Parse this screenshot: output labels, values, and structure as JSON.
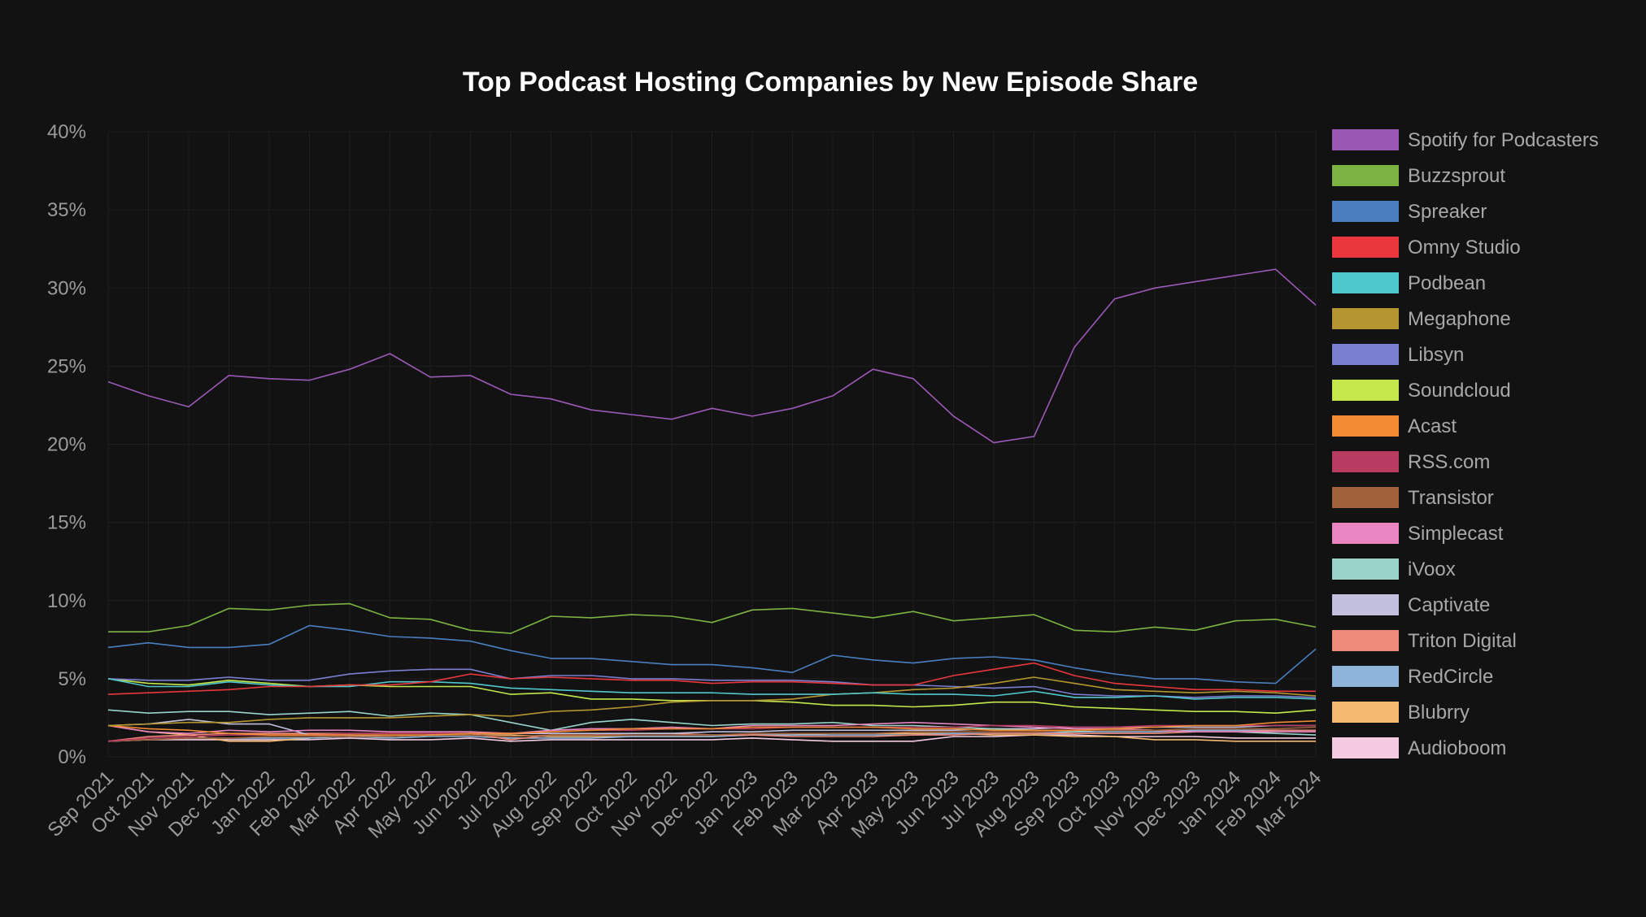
{
  "chart_data": {
    "type": "line",
    "title": "Top Podcast Hosting Companies by New Episode Share",
    "xlabel": "",
    "ylabel": "",
    "ylim": [
      0,
      40
    ],
    "yticks": [
      0,
      5,
      10,
      15,
      20,
      25,
      30,
      35,
      40
    ],
    "ytick_labels": [
      "0%",
      "5%",
      "10%",
      "15%",
      "20%",
      "25%",
      "30%",
      "35%",
      "40%"
    ],
    "grid": true,
    "legend_position": "right",
    "x": [
      "Sep 2021",
      "Oct 2021",
      "Nov 2021",
      "Dec 2021",
      "Jan 2022",
      "Feb 2022",
      "Mar 2022",
      "Apr 2022",
      "May 2022",
      "Jun 2022",
      "Jul 2022",
      "Aug 2022",
      "Sep 2022",
      "Oct 2022",
      "Nov 2022",
      "Dec 2022",
      "Jan 2023",
      "Feb 2023",
      "Mar 2023",
      "Apr 2023",
      "May 2023",
      "Jun 2023",
      "Jul 2023",
      "Aug 2023",
      "Sep 2023",
      "Oct 2023",
      "Nov 2023",
      "Dec 2023",
      "Jan 2024",
      "Feb 2024",
      "Mar 2024"
    ],
    "series": [
      {
        "name": "Spotify for Podcasters",
        "color": "#9b59b6",
        "values": [
          24.0,
          23.1,
          22.4,
          24.4,
          24.2,
          24.1,
          24.8,
          25.8,
          24.3,
          24.4,
          23.2,
          22.9,
          22.2,
          21.9,
          21.6,
          22.3,
          21.8,
          22.3,
          23.1,
          24.8,
          24.2,
          21.8,
          20.1,
          20.5,
          26.2,
          29.3,
          30.0,
          30.4,
          30.8,
          31.2,
          28.9
        ]
      },
      {
        "name": "Buzzsprout",
        "color": "#7cb342",
        "values": [
          8.0,
          8.0,
          8.4,
          9.5,
          9.4,
          9.7,
          9.8,
          8.9,
          8.8,
          8.1,
          7.9,
          9.0,
          8.9,
          9.1,
          9.0,
          8.6,
          9.4,
          9.5,
          9.2,
          8.9,
          9.3,
          8.7,
          8.9,
          9.1,
          8.1,
          8.0,
          8.3,
          8.1,
          8.7,
          8.8,
          8.3
        ]
      },
      {
        "name": "Spreaker",
        "color": "#4a7fbf",
        "values": [
          7.0,
          7.3,
          7.0,
          7.0,
          7.2,
          8.4,
          8.1,
          7.7,
          7.6,
          7.4,
          6.8,
          6.3,
          6.3,
          6.1,
          5.9,
          5.9,
          5.7,
          5.4,
          6.5,
          6.2,
          6.0,
          6.3,
          6.4,
          6.2,
          5.7,
          5.3,
          5.0,
          5.0,
          4.8,
          4.7,
          6.9
        ]
      },
      {
        "name": "Omny Studio",
        "color": "#e8383d",
        "values": [
          4.0,
          4.1,
          4.2,
          4.3,
          4.5,
          4.5,
          4.6,
          4.6,
          4.8,
          5.3,
          5.0,
          5.1,
          5.0,
          4.9,
          4.9,
          4.7,
          4.8,
          4.8,
          4.7,
          4.6,
          4.6,
          5.2,
          5.6,
          6.0,
          5.2,
          4.7,
          4.5,
          4.3,
          4.3,
          4.2,
          4.2
        ]
      },
      {
        "name": "Podbean",
        "color": "#4fc8cc",
        "values": [
          5.0,
          4.5,
          4.5,
          4.8,
          4.6,
          4.5,
          4.5,
          4.8,
          4.8,
          4.7,
          4.4,
          4.3,
          4.2,
          4.1,
          4.1,
          4.1,
          4.0,
          4.0,
          4.0,
          4.1,
          4.0,
          4.0,
          3.9,
          4.2,
          3.8,
          3.8,
          3.9,
          3.7,
          3.8,
          3.8,
          3.7
        ]
      },
      {
        "name": "Megaphone",
        "color": "#b5952f",
        "values": [
          2.0,
          2.1,
          2.2,
          2.2,
          2.4,
          2.5,
          2.5,
          2.5,
          2.6,
          2.7,
          2.6,
          2.9,
          3.0,
          3.2,
          3.5,
          3.6,
          3.6,
          3.7,
          4.0,
          4.1,
          4.3,
          4.4,
          4.7,
          5.1,
          4.7,
          4.3,
          4.2,
          4.1,
          4.2,
          4.1,
          3.9
        ]
      },
      {
        "name": "Libsyn",
        "color": "#7b7fd1",
        "values": [
          5.0,
          4.9,
          4.9,
          5.1,
          4.9,
          4.9,
          5.3,
          5.5,
          5.6,
          5.6,
          5.0,
          5.2,
          5.2,
          5.0,
          5.0,
          4.9,
          4.9,
          4.9,
          4.8,
          4.6,
          4.6,
          4.5,
          4.4,
          4.5,
          4.0,
          3.9,
          3.9,
          3.8,
          3.9,
          3.9,
          3.8
        ]
      },
      {
        "name": "Soundcloud",
        "color": "#c4e84c",
        "values": [
          5.0,
          4.7,
          4.6,
          4.9,
          4.7,
          4.5,
          4.6,
          4.5,
          4.5,
          4.5,
          4.0,
          4.1,
          3.7,
          3.7,
          3.6,
          3.6,
          3.6,
          3.5,
          3.3,
          3.3,
          3.2,
          3.3,
          3.5,
          3.5,
          3.2,
          3.1,
          3.0,
          2.9,
          2.9,
          2.8,
          3.0
        ]
      },
      {
        "name": "Acast",
        "color": "#f08a33",
        "values": [
          2.0,
          1.8,
          1.7,
          1.5,
          1.4,
          1.4,
          1.4,
          1.4,
          1.4,
          1.5,
          1.5,
          1.6,
          1.7,
          1.8,
          1.8,
          1.8,
          1.9,
          1.9,
          1.9,
          1.9,
          1.8,
          1.8,
          1.7,
          1.7,
          1.7,
          1.8,
          1.9,
          2.0,
          2.0,
          2.2,
          2.3
        ]
      },
      {
        "name": "RSS.com",
        "color": "#b83c62",
        "values": [
          1.0,
          1.2,
          1.3,
          1.4,
          1.4,
          1.4,
          1.5,
          1.5,
          1.5,
          1.5,
          1.5,
          1.6,
          1.7,
          1.7,
          1.8,
          1.8,
          1.8,
          1.9,
          1.9,
          1.9,
          1.9,
          1.9,
          2.0,
          2.0,
          1.9,
          1.9,
          2.0,
          2.0,
          2.0,
          2.0,
          2.0
        ]
      },
      {
        "name": "Transistor",
        "color": "#a0603a",
        "values": [
          1.0,
          1.1,
          1.2,
          1.2,
          1.3,
          1.3,
          1.3,
          1.3,
          1.4,
          1.4,
          1.3,
          1.4,
          1.4,
          1.4,
          1.4,
          1.4,
          1.5,
          1.5,
          1.5,
          1.5,
          1.6,
          1.6,
          1.6,
          1.6,
          1.7,
          1.7,
          1.7,
          1.8,
          1.8,
          1.8,
          1.9
        ]
      },
      {
        "name": "Simplecast",
        "color": "#e986c2",
        "values": [
          2.0,
          1.6,
          1.5,
          1.7,
          1.6,
          1.7,
          1.7,
          1.6,
          1.6,
          1.6,
          1.5,
          1.7,
          1.8,
          1.8,
          1.9,
          1.8,
          2.0,
          2.0,
          2.0,
          2.1,
          2.2,
          2.1,
          2.0,
          1.9,
          1.8,
          1.8,
          1.7,
          1.6,
          1.6,
          1.6,
          1.6
        ]
      },
      {
        "name": "iVoox",
        "color": "#98d4c8",
        "values": [
          3.0,
          2.8,
          2.9,
          2.9,
          2.7,
          2.8,
          2.9,
          2.6,
          2.8,
          2.7,
          2.2,
          1.7,
          2.2,
          2.4,
          2.2,
          2.0,
          2.1,
          2.1,
          2.2,
          2.0,
          2.0,
          1.9,
          1.8,
          1.7,
          1.6,
          1.8,
          1.7,
          1.6,
          1.6,
          1.5,
          1.4
        ]
      },
      {
        "name": "Captivate",
        "color": "#c2c0de",
        "values": [
          2.0,
          2.1,
          2.4,
          2.1,
          2.1,
          1.4,
          1.4,
          1.3,
          1.4,
          1.5,
          1.5,
          1.5,
          1.5,
          1.5,
          1.5,
          1.6,
          1.6,
          1.7,
          1.7,
          1.7,
          1.7,
          1.7,
          1.8,
          1.8,
          1.9,
          1.9,
          1.9,
          1.9,
          1.9,
          2.0,
          2.0
        ]
      },
      {
        "name": "Triton Digital",
        "color": "#ee8a7a",
        "values": [
          1.0,
          1.3,
          1.4,
          1.5,
          1.5,
          1.5,
          1.5,
          1.5,
          1.5,
          1.5,
          1.1,
          1.4,
          1.4,
          1.5,
          1.5,
          1.4,
          1.4,
          1.3,
          1.3,
          1.3,
          1.4,
          1.4,
          1.5,
          1.5,
          1.5,
          1.5,
          1.5,
          1.6,
          1.6,
          1.7,
          1.7
        ]
      },
      {
        "name": "RedCircle",
        "color": "#8fb5da",
        "values": [
          1.0,
          1.1,
          1.2,
          1.2,
          1.2,
          1.2,
          1.3,
          1.2,
          1.3,
          1.3,
          1.2,
          1.2,
          1.2,
          1.3,
          1.3,
          1.3,
          1.4,
          1.4,
          1.4,
          1.4,
          1.4,
          1.5,
          1.5,
          1.5,
          1.6,
          1.6,
          1.6,
          1.7,
          1.7,
          1.7,
          1.7
        ]
      },
      {
        "name": "Blubrry",
        "color": "#f5b970",
        "values": [
          2.0,
          1.6,
          1.4,
          1.0,
          1.0,
          1.2,
          1.3,
          1.3,
          1.4,
          1.4,
          1.4,
          1.3,
          1.3,
          1.3,
          1.3,
          1.3,
          1.4,
          1.4,
          1.5,
          1.5,
          1.5,
          1.5,
          1.4,
          1.4,
          1.3,
          1.3,
          1.1,
          1.1,
          1.0,
          1.0,
          1.0
        ]
      },
      {
        "name": "Audioboom",
        "color": "#f5cbe2",
        "values": [
          1.0,
          1.1,
          1.1,
          1.1,
          1.1,
          1.1,
          1.2,
          1.1,
          1.1,
          1.2,
          1.0,
          1.1,
          1.1,
          1.1,
          1.1,
          1.1,
          1.2,
          1.1,
          1.0,
          1.0,
          1.0,
          1.3,
          1.3,
          1.4,
          1.4,
          1.3,
          1.3,
          1.3,
          1.2,
          1.2,
          1.2
        ]
      }
    ]
  }
}
